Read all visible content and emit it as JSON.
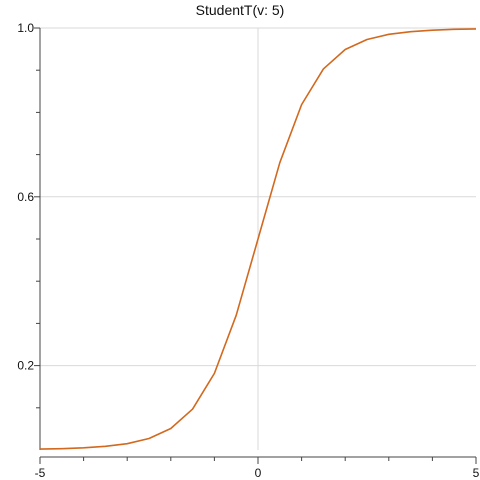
{
  "chart_data": {
    "type": "line",
    "title": "StudentT(v: 5)",
    "xlabel": "",
    "ylabel": "",
    "xlim": [
      -5,
      5
    ],
    "ylim": [
      0,
      1
    ],
    "grid": true,
    "x_ticks_major": [
      -5,
      0,
      5
    ],
    "x_tick_labels": [
      "-5",
      "0",
      "5"
    ],
    "y_ticks_major": [
      0.2,
      0.6,
      1.0
    ],
    "y_tick_labels": [
      "0.2",
      "0.6",
      "1.0"
    ],
    "series": [
      {
        "color": "#d2691e",
        "x": [
          -5,
          -4.5,
          -4,
          -3.5,
          -3,
          -2.5,
          -2,
          -1.5,
          -1,
          -0.5,
          0,
          0.5,
          1,
          1.5,
          2,
          2.5,
          3,
          3.5,
          4,
          4.5,
          5
        ],
        "y": [
          0.0021,
          0.0032,
          0.0052,
          0.0087,
          0.015,
          0.0272,
          0.051,
          0.097,
          0.1816,
          0.3191,
          0.5,
          0.6809,
          0.8184,
          0.903,
          0.949,
          0.9728,
          0.985,
          0.9913,
          0.9948,
          0.9968,
          0.9979
        ]
      }
    ]
  }
}
